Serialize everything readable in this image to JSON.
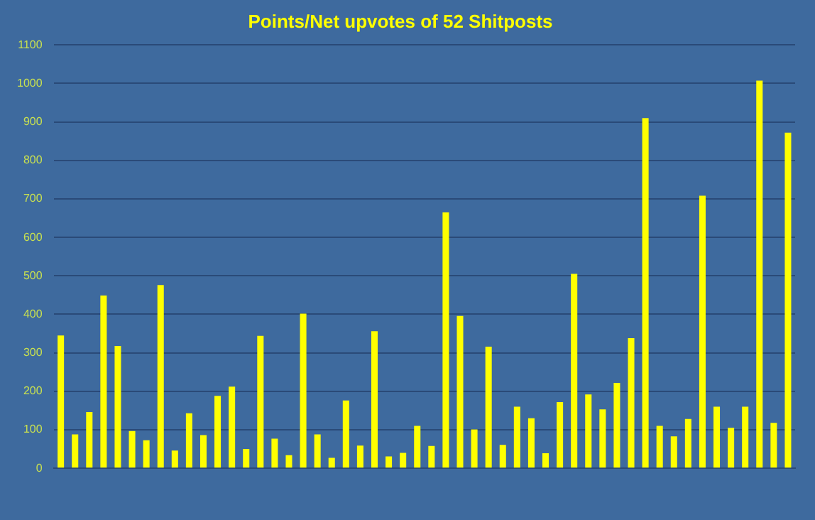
{
  "chart_data": {
    "type": "bar",
    "title": "Points/Net upvotes of 52 Shitposts",
    "categories": [
      null,
      null,
      null,
      null,
      null,
      null,
      null,
      null,
      null,
      null,
      null,
      null,
      null,
      null,
      null,
      null,
      null,
      null,
      null,
      null,
      null,
      null,
      null,
      null,
      null,
      null,
      null,
      null,
      null,
      null,
      null,
      null,
      null,
      null,
      null,
      null,
      null,
      null,
      null,
      null,
      null,
      null,
      null,
      null,
      null,
      null,
      null,
      null,
      null,
      null,
      null,
      null
    ],
    "values": [
      345,
      88,
      146,
      449,
      318,
      97,
      73,
      476,
      46,
      143,
      86,
      188,
      212,
      50,
      344,
      77,
      34,
      402,
      88,
      27,
      176,
      59,
      356,
      31,
      40,
      110,
      58,
      665,
      396,
      101,
      316,
      61,
      160,
      130,
      39,
      172,
      505,
      192,
      153,
      222,
      338,
      910,
      110,
      83,
      128,
      708,
      160,
      105,
      160,
      1007,
      118,
      872
    ],
    "color": "#ffff00",
    "ylim": [
      0,
      1100
    ],
    "yticks": [
      0,
      100,
      200,
      300,
      400,
      500,
      600,
      700,
      800,
      900,
      1000,
      1100
    ],
    "grid": "y",
    "legend": false
  }
}
